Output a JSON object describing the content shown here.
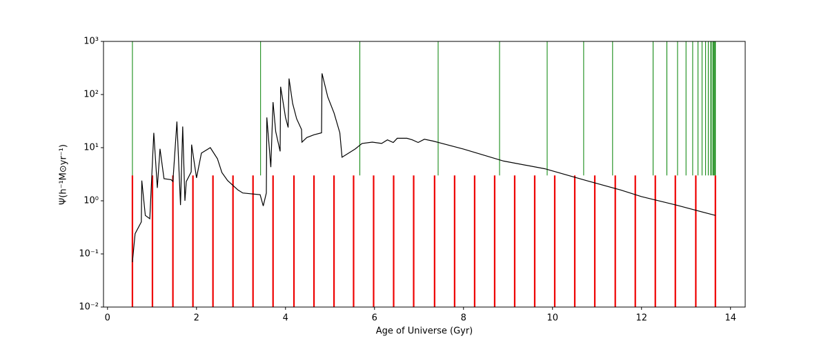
{
  "chart_data": {
    "type": "line",
    "xlabel": "Age of Universe (Gyr)",
    "ylabel": "Ψ(h⁻¹M⊙yr⁻¹)",
    "xlim": [
      -0.09,
      14.33
    ],
    "ylim": [
      0.01,
      1000
    ],
    "yscale": "log",
    "xticks": [
      0,
      2,
      4,
      6,
      8,
      10,
      12,
      14
    ],
    "yticks": [
      {
        "value": 0.01,
        "label": "10⁻²"
      },
      {
        "value": 0.1,
        "label": "10⁻¹"
      },
      {
        "value": 1,
        "label": "10⁰"
      },
      {
        "value": 10,
        "label": "10¹"
      },
      {
        "value": 100,
        "label": "10²"
      },
      {
        "value": 1000,
        "label": "10³"
      }
    ],
    "series": [
      {
        "color": "#000000",
        "x": [
          0.56,
          0.62,
          0.76,
          0.77,
          0.85,
          0.95,
          1.04,
          1.12,
          1.18,
          1.27,
          1.43,
          1.47,
          1.56,
          1.64,
          1.69,
          1.74,
          1.77,
          1.88,
          1.89,
          2.0,
          2.11,
          2.31,
          2.47,
          2.57,
          2.7,
          2.93,
          3.04,
          3.43,
          3.5,
          3.57,
          3.58,
          3.67,
          3.72,
          3.78,
          3.88,
          3.89,
          4.0,
          4.06,
          4.08,
          4.16,
          4.25,
          4.36,
          4.37,
          4.48,
          4.64,
          4.81,
          4.82,
          4.95,
          5.09,
          5.22,
          5.27,
          5.41,
          5.57,
          5.72,
          5.95,
          6.16,
          6.29,
          6.42,
          6.51,
          6.73,
          6.85,
          6.98,
          7.12,
          7.32,
          8.0,
          8.9,
          9.83,
          10.76,
          11.53,
          12.0,
          12.78,
          13.66
        ],
        "values": [
          0.07,
          0.24,
          0.4,
          2.4,
          0.53,
          0.46,
          19,
          1.75,
          9.5,
          2.6,
          2.5,
          2.3,
          31,
          0.83,
          25,
          1.0,
          2.3,
          3.5,
          11.4,
          2.7,
          7.9,
          10,
          6.2,
          3.4,
          2.4,
          1.6,
          1.4,
          1.3,
          0.8,
          1.4,
          37,
          4.3,
          72,
          20,
          8.5,
          140,
          37,
          24,
          200,
          68,
          35,
          22,
          12.7,
          15.5,
          17.5,
          19,
          250,
          90,
          45,
          19,
          6.6,
          7.8,
          9.5,
          12,
          12.7,
          12,
          14,
          12.5,
          15,
          15,
          14,
          12.5,
          14.4,
          13.3,
          9.4,
          5.6,
          4.0,
          2.4,
          1.6,
          1.2,
          0.83,
          0.53
        ]
      }
    ],
    "vlines": [
      {
        "color": "#ee0000",
        "ymin": 0.01,
        "ymax": 3,
        "x": [
          0.56,
          1.01,
          1.47,
          1.92,
          2.37,
          2.82,
          3.27,
          3.72,
          4.19,
          4.64,
          5.09,
          5.53,
          5.98,
          6.43,
          6.88,
          7.35,
          7.8,
          8.25,
          8.7,
          9.15,
          9.6,
          10.05,
          10.5,
          10.95,
          11.41,
          11.86,
          12.31,
          12.76,
          13.22,
          13.66
        ]
      },
      {
        "color": "#008000",
        "ymin": 3,
        "ymax": 1000,
        "x": [
          0.56,
          3.44,
          5.67,
          7.43,
          8.81,
          9.88,
          10.7,
          11.35,
          12.26,
          12.57,
          12.81,
          13.0,
          13.15,
          13.27,
          13.36,
          13.44,
          13.5,
          13.55,
          13.58,
          13.61,
          13.63,
          13.65,
          13.66
        ]
      }
    ]
  }
}
